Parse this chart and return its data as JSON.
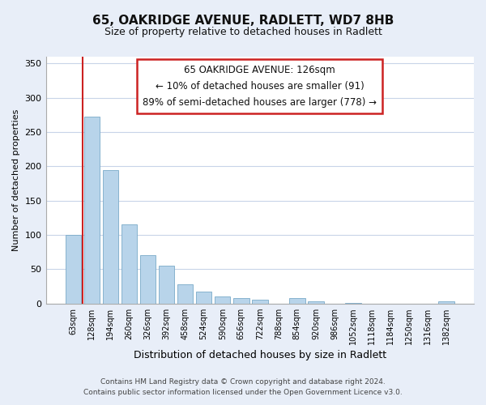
{
  "title": "65, OAKRIDGE AVENUE, RADLETT, WD7 8HB",
  "subtitle": "Size of property relative to detached houses in Radlett",
  "xlabel": "Distribution of detached houses by size in Radlett",
  "ylabel": "Number of detached properties",
  "categories": [
    "63sqm",
    "128sqm",
    "194sqm",
    "260sqm",
    "326sqm",
    "392sqm",
    "458sqm",
    "524sqm",
    "590sqm",
    "656sqm",
    "722sqm",
    "788sqm",
    "854sqm",
    "920sqm",
    "986sqm",
    "1052sqm",
    "1118sqm",
    "1184sqm",
    "1250sqm",
    "1316sqm",
    "1382sqm"
  ],
  "values": [
    100,
    272,
    195,
    115,
    70,
    55,
    28,
    17,
    10,
    8,
    5,
    0,
    8,
    3,
    0,
    1,
    0,
    0,
    0,
    0,
    3
  ],
  "bar_color": "#b8d4ea",
  "ylim": [
    0,
    360
  ],
  "yticks": [
    0,
    50,
    100,
    150,
    200,
    250,
    300,
    350
  ],
  "annotation_title": "65 OAKRIDGE AVENUE: 126sqm",
  "annotation_line1": "← 10% of detached houses are smaller (91)",
  "annotation_line2": "89% of semi-detached houses are larger (778) →",
  "footer_line1": "Contains HM Land Registry data © Crown copyright and database right 2024.",
  "footer_line2": "Contains public sector information licensed under the Open Government Licence v3.0.",
  "background_color": "#e8eef8",
  "plot_bg_color": "#ffffff",
  "grid_color": "#c8d4e8",
  "redline_color": "#cc2222",
  "annot_edge_color": "#cc2222",
  "title_fontsize": 11,
  "subtitle_fontsize": 9,
  "ylabel_fontsize": 8,
  "xlabel_fontsize": 9,
  "tick_fontsize": 7,
  "annot_fontsize": 8.5,
  "footer_fontsize": 6.5
}
